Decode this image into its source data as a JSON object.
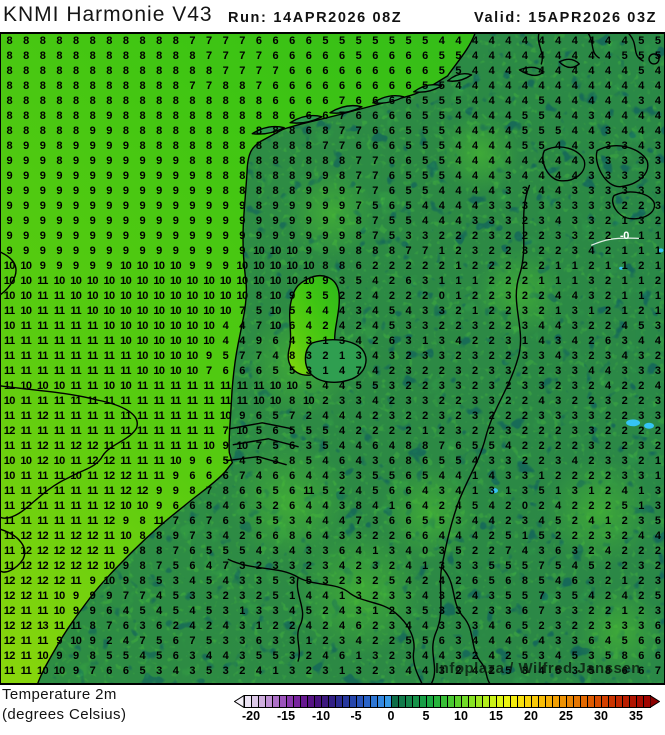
{
  "header": {
    "title": "KNMI Harmonie V43",
    "run_label": "Run:",
    "run_value": "14APR2026 08Z",
    "valid_label": "Valid:",
    "valid_value": "15APR2026 03Z"
  },
  "footer": {
    "param_line1": "Temperature 2m",
    "param_line2": "(degrees Celsius)"
  },
  "watermark": "Infoplaza / Wilfred Janssen",
  "map": {
    "contour_label": "-0",
    "grid_rows": [
      "8 8 8 8 8 8 8 8 8 8 8 7 7 7 7 6 6 6 6 5 5 5 5 5 5 5 4 4 4 4 4 4 4 4 4 4 4 4 5 5",
      "8 8 8 8 8 8 8 8 8 8 8 8 7 7 7 7 6 6 6 6 6 5 6 6 6 6 5 5 4 4 4 4 4 4 4 4 4 5 5 5",
      "8 8 8 8 8 8 8 8 8 8 8 8 8 7 7 7 7 6 6 6 6 6 6 6 6 6 5 5 4 4 4 4 4 4 4 4 4 4 5 4",
      "8 8 8 8 8 8 8 8 8 8 8 7 7 8 8 7 6 6 6 6 6 6 6 6 6 5 5 4 4 4 4 4 4 4 4 4 4 4 4 4",
      "8 8 8 8 8 8 8 8 8 8 8 8 8 8 8 8 6 6 6 6 7 6 6 6 6 5 5 5 4 4 4 4 5 4 4 4 4 4 3 4",
      "8 8 8 8 8 8 9 8 8 8 8 8 8 8 8 8 8 6 6 6 7 6 6 6 6 5 5 4 4 4 4 5 5 4 4 3 4 4 4 4",
      "8 8 8 8 8 9 9 8 8 8 8 8 8 8 8 8 8 8 6 8 7 7 6 6 5 5 5 4 4 4 4 5 5 5 4 4 3 4 4 4",
      "8 9 9 8 9 9 9 9 8 8 8 8 8 8 8 8 8 8 8 7 7 6 6 6 5 5 5 4 4 4 4 5 5 4 4 3 3 3 4 3",
      "9 9 9 8 9 9 9 9 9 9 9 8 8 8 8 8 8 8 8 8 8 7 7 6 6 5 5 4 4 4 4 4 4 4 4 3 3 3 3 3",
      "9 9 9 9 9 9 9 9 9 9 9 9 8 8 8 8 8 8 9 9 8 7 7 6 5 5 5 4 4 4 3 4 4 4 4 3 3 3 3 3",
      "9 9 9 9 9 9 9 9 9 9 9 9 9 8 8 8 8 8 9 9 9 7 7 6 5 5 4 4 4 4 3 3 4 4 3 3 3 3 3 3",
      "9 9 9 9 9 9 9 9 9 9 9 9 9 9 9 8 9 9 9 9 9 7 5 6 5 4 4 4 4 3 3 3 3 3 3 3 3 2 2 3",
      "9 9 9 9 9 9 9 9 9 9 9 9 9 9 9 9 9 9 9 9 9 8 7 5 5 4 4 4 3 3 3 2 3 4 3 3 2 1 3 2",
      "9 9 9 9 9 9 9 9 9 9 9 9 9 9 9 9 9 9 9 9 9 8 7 5 3 3 2 2 2 3 2 2 2 3 3 2 2 -0 1 1",
      "9 9 9 9 9 9 9 9 9 9 9 9 9 9 9 10 10 10 9 9 9 8 8 8 7 7 1 2 3 2 2 3 2 2 3 4 2 1 1 1",
      "10 10 9 9 9 9 9 10 10 10 10 9 9 9 10 10 10 10 10 8 8 6 2 2 2 2 2 1 2 2 2 2 2 1 1 2 1 1 2 1",
      "10 10 11 10 10 10 10 10 10 10 10 10 10 10 10 10 10 10 10 9 3 5 4 2 6 3 1 1 1 2 2 2 1 1 1 3 2 1 1 2",
      "10 10 11 11 10 10 10 10 10 10 10 10 10 10 10 8 10 9 3 5 2 2 4 2 2 2 0 1 2 2 3 2 2 4 4 3 2 1 1 1",
      "11 10 11 11 11 10 10 10 10 10 10 10 10 10 7 5 10 5 4 4 4 3 4 5 4 3 3 2 1 2 2 3 2 1 3 1 2 1 2 1",
      "10 11 11 11 11 11 10 10 10 10 10 10 10 4 4 7 10 6 4 2 4 2 4 5 3 3 2 2 3 2 2 3 4 4 3 2 2 4 5 3",
      "11 11 11 11 11 11 11 10 10 10 10 10 10 4 4 9 6 4 3 1 3 4 2 6 3 1 3 4 2 2 3 1 4 3 4 2 6 3 4 4",
      "11 11 11 11 11 11 11 11 10 10 10 10 9 5 7 7 4 8 3 2 1 3 4 3 2 3 3 2 3 2 2 3 3 4 3 2 3 4 3 2",
      "11 11 11 11 11 11 11 11 10 10 10 10 7 6 6 6 5 5 3 1 4 7 4 2 3 2 2 3 2 3 3 2 2 3 3 4 4 3 3 3",
      "11 10 10 10 11 11 10 10 11 11 11 11 11 11 11 11 10 10 5 4 4 5 5 3 2 2 3 3 2 3 2 3 3 2 3 2 4 2 2 4",
      "10 11 11 11 11 11 11 11 11 11 11 11 11 11 11 10 10 8 10 2 3 3 4 2 3 3 2 2 3 3 2 2 4 3 2 2 3 2 2 3",
      "11 11 12 11 11 11 11 11 11 11 11 11 11 10 9 6 5 7 2 4 4 4 2 3 2 2 3 2 3 2 2 2 3 3 3 3 2 2 3 3",
      "12 11 11 11 11 11 11 11 11 11 11 11 11 7 10 5 6 5 5 5 4 2 2 2 2 1 2 3 2 2 3 2 2 2 3 3 2 2 2 2",
      "11 11 12 11 12 12 11 11 11 11 11 11 10 9 10 7 5 6 3 5 4 4 6 4 8 8 7 6 5 5 4 2 2 2 2 3 2 2 3 2",
      "10 10 12 10 11 12 12 11 11 11 10 9 6 5 4 5 3 8 5 4 6 4 3 6 8 6 5 5 4 3 3 2 2 3 4 2 3 3 2 1",
      "10 11 11 11 10 11 12 12 11 11 9 6 6 6 7 4 6 6 4 4 3 3 5 5 6 5 4 4 1 4 3 3 1 2 2 2 2 3 3 1",
      "11 11 11 11 11 11 11 12 12 9 9 8 7 8 6 6 5 6 11 5 2 4 5 6 6 4 3 4 1 3 1 3 5 1 3 1 2 4 1 3",
      "11 12 11 11 11 11 12 10 10 9 6 6 8 4 6 3 2 6 4 4 3 8 4 1 6 4 2 4 5 4 2 0 2 4 2 2 2 5 1 3",
      "11 11 11 11 11 11 12 9 8 11 7 6 7 6 3 5 5 3 4 4 4 7 3 6 6 5 5 3 4 4 2 3 4 5 2 4 1 2 3 5",
      "11 12 12 11 12 12 11 10 8 8 9 7 3 4 2 6 6 8 6 4 3 3 2 2 6 6 4 4 4 2 5 1 5 2 2 2 3 2 4 4",
      "11 12 12 12 12 12 11 9 8 8 7 6 5 5 5 4 3 4 3 3 6 4 1 3 4 0 3 5 2 2 7 4 3 6 3 2 4 2 2 2",
      "11 12 12 12 12 12 10 9 8 7 5 6 4 7 3 2 3 3 2 3 4 2 3 2 4 1 3 3 3 5 5 5 7 5 4 5 2 2 3 2",
      "12 12 12 12 11 9 10 9 8 5 3 4 5 4 3 3 5 3 5 3 2 3 2 5 4 2 4 2 6 5 6 8 5 4 6 3 2 1 2 3",
      "12 12 11 10 9 9 9 7 7 4 5 3 3 2 3 2 5 1 4 4 1 3 2 3 3 4 3 2 4 3 5 5 7 3 5 4 2 4 2 5",
      "12 11 11 10 9 9 6 4 5 4 5 4 5 3 1 3 3 4 5 2 4 3 1 2 3 5 3 3 2 3 3 6 7 3 3 2 2 1 2 3",
      "12 12 13 11 11 8 7 6 3 6 2 4 2 4 3 1 2 2 4 2 4 6 2 3 4 4 3 3 3 4 6 5 2 3 2 2 3 3 3 6",
      "12 11 11 9 10 9 2 4 7 5 6 7 5 3 3 6 3 3 1 2 3 4 2 2 5 5 6 3 4 4 4 6 4 3 3 6 4 5 6 6",
      "12 11 10 9 9 8 5 5 4 5 6 3 4 4 3 5 5 3 2 4 6 1 3 2 3 4 4 3 2 4 2 5 3 4 5 3 5 8 6 6",
      "11 11 10 10 9 7 6 6 5 3 4 3 5 3 2 4 1 3 2 3 1 3 2 3 4 4 3 2 4 2 5 3 4 5 3 5 8 6 6 7"
    ]
  },
  "colorbar": {
    "title_implied_units": "degrees Celsius",
    "min_cell_value": -21,
    "max_cell_value": 36,
    "cell_deg": 1,
    "tick_values": [
      -20,
      -15,
      -10,
      -5,
      0,
      5,
      10,
      15,
      20,
      25,
      30,
      35
    ],
    "tick_labels": [
      "-20",
      "-15",
      "-10",
      "-5",
      "0",
      "5",
      "10",
      "15",
      "20",
      "25",
      "30",
      "35"
    ],
    "cell_colors": [
      "#ece4f4",
      "#dcc8e8",
      "#cfaede",
      "#bf90d4",
      "#ad70c8",
      "#9c54bc",
      "#8a38ae",
      "#78249e",
      "#661890",
      "#561384",
      "#48127e",
      "#3c187e",
      "#322086",
      "#2b2c92",
      "#27389e",
      "#2646ac",
      "#2854ba",
      "#2a64c8",
      "#2e76d4",
      "#3388e0",
      "#389ae6",
      "#0e6e48",
      "#117a4a",
      "#14864a",
      "#169249",
      "#189e46",
      "#1caa42",
      "#28b43c",
      "#38be36",
      "#4ac831",
      "#5ed22c",
      "#72da28",
      "#88e224",
      "#9ee820",
      "#b4ee1c",
      "#caf218",
      "#def614",
      "#ecf411",
      "#f4ec0e",
      "#f8e00c",
      "#f8d40a",
      "#f8c808",
      "#f8bc06",
      "#f6ae05",
      "#f2a004",
      "#ee9203",
      "#ea8402",
      "#e67601",
      "#e26800",
      "#de5a00",
      "#d84c00",
      "#d24000",
      "#ca3400",
      "#c22800",
      "#ba1e00",
      "#b01400",
      "#a80c00",
      "#a00400"
    ],
    "left_arrow_color": "#f4f0f8",
    "right_arrow_color": "#8c0000"
  },
  "colors": {
    "sea_bright_green": "#55cc10",
    "sea_mid_green": "#3fc513",
    "land_teal": "#289257",
    "coastline": "#000000",
    "lake_cyan": "#35c4f5",
    "contour_label_white": "#ffffff",
    "text_black": "#000000"
  }
}
